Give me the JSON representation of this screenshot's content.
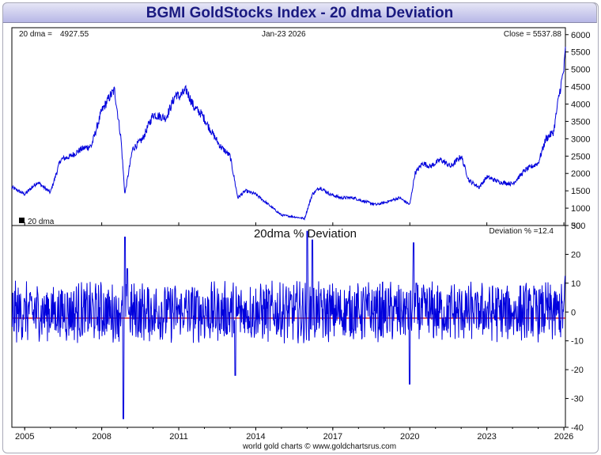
{
  "title": "BGMI GoldStocks Index - 20 dma Deviation",
  "top_panel": {
    "dma_label": "20 dma =",
    "dma_value": "4927.55",
    "date": "Jan-23  2026",
    "close_label": "Close = 5537.88",
    "legend": "20 dma"
  },
  "bottom_panel": {
    "title": "20dma  %  Deviation",
    "deviation_label": "Deviation % =12.4"
  },
  "footer": "world gold charts © www.goldchartsrus.com",
  "colors": {
    "series": "#0000dd",
    "zero_line": "#cc0000",
    "title_text": "#1a1a80"
  },
  "chart_data": [
    {
      "type": "line",
      "title": "BGMI GoldStocks Index",
      "ylim": [
        500,
        6200
      ],
      "yticks": [
        500,
        1000,
        1500,
        2000,
        2500,
        3000,
        3500,
        4000,
        4500,
        5000,
        5500,
        6000
      ],
      "x": [
        2004.5,
        2005.0,
        2005.5,
        2006.0,
        2006.4,
        2006.8,
        2007.2,
        2007.6,
        2008.0,
        2008.3,
        2008.5,
        2008.75,
        2008.9,
        2009.2,
        2009.6,
        2010.0,
        2010.5,
        2010.9,
        2011.0,
        2011.3,
        2011.6,
        2011.9,
        2012.2,
        2012.6,
        2013.0,
        2013.3,
        2013.6,
        2014.0,
        2014.5,
        2015.0,
        2015.5,
        2015.9,
        2016.2,
        2016.5,
        2016.9,
        2017.3,
        2017.8,
        2018.2,
        2018.7,
        2019.2,
        2019.6,
        2020.0,
        2020.2,
        2020.5,
        2020.8,
        2021.2,
        2021.6,
        2022.0,
        2022.3,
        2022.7,
        2023.0,
        2023.5,
        2024.0,
        2024.5,
        2025.0,
        2025.3,
        2025.6,
        2025.8,
        2026.0,
        2026.06
      ],
      "values": [
        1600,
        1400,
        1750,
        1450,
        2400,
        2500,
        2700,
        2800,
        3800,
        4200,
        4400,
        3000,
        1400,
        2700,
        3000,
        3700,
        3600,
        4300,
        4200,
        4400,
        3900,
        3700,
        3300,
        2800,
        2500,
        1300,
        1500,
        1400,
        1100,
        800,
        750,
        700,
        1400,
        1600,
        1400,
        1300,
        1300,
        1200,
        1100,
        1200,
        1300,
        1100,
        2000,
        2300,
        2200,
        2400,
        2200,
        2500,
        1800,
        1600,
        1900,
        1750,
        1700,
        2100,
        2300,
        3000,
        3200,
        4200,
        5000,
        5540
      ],
      "xticks": [
        2005,
        2008,
        2011,
        2014,
        2017,
        2020,
        2023,
        2026
      ]
    },
    {
      "type": "line",
      "title": "20dma  %  Deviation",
      "ylim": [
        -40,
        30
      ],
      "yticks": [
        -40,
        -30,
        -20,
        -10,
        0,
        10,
        20,
        30
      ],
      "x": [
        2004.5,
        2008.85,
        2008.9,
        2009.0,
        2013.2,
        2016.0,
        2016.2,
        2020.0,
        2020.15,
        2020.25,
        2026.06
      ],
      "values": [
        -5,
        -37,
        26,
        15,
        -22,
        28,
        25,
        -25,
        24,
        10,
        12.4
      ],
      "xticks": [
        2005,
        2008,
        2011,
        2014,
        2017,
        2020,
        2023,
        2026
      ]
    }
  ]
}
